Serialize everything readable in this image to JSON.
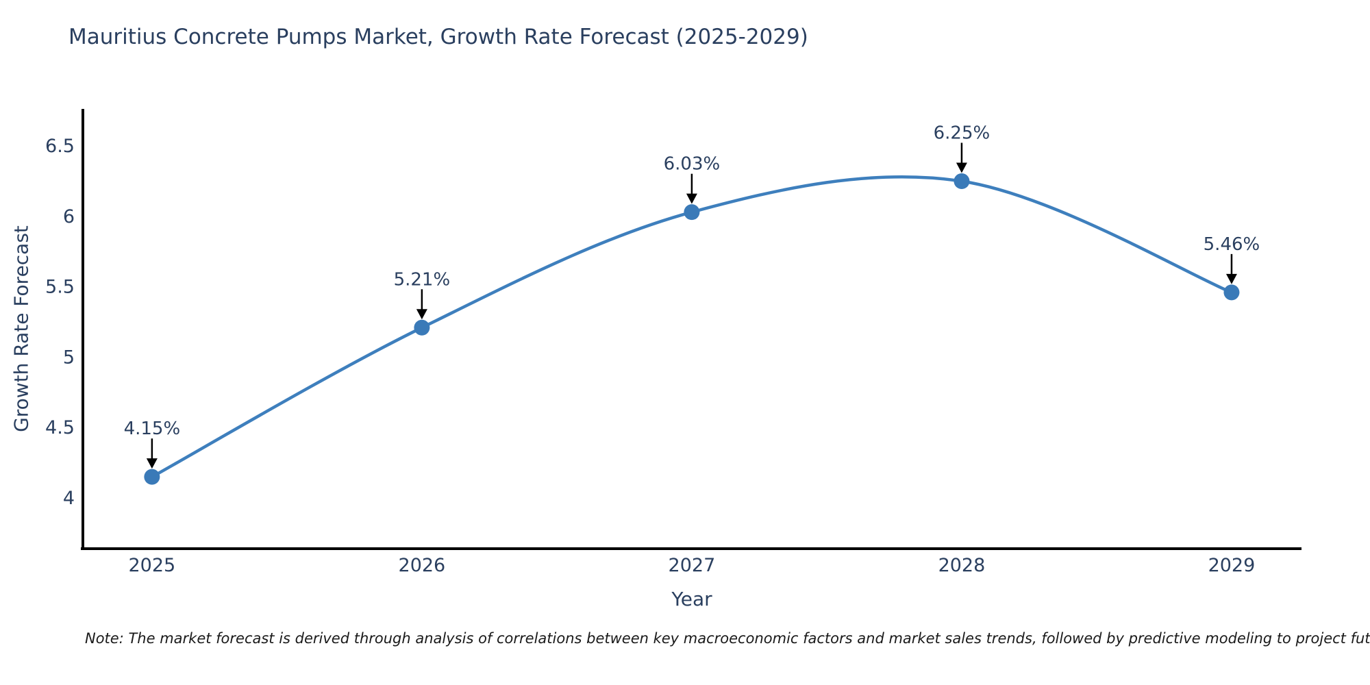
{
  "title": "Mauritius Concrete Pumps Market, Growth Rate Forecast (2025-2029)",
  "note": "Note: The market forecast is derived through analysis of correlations between key macroeconomic factors and market sales trends, followed by predictive modeling to project future sales",
  "colors": {
    "text": "#2a3f5f",
    "line": "#3e7fbd",
    "marker": "#3a7ab8",
    "axis": "#000000",
    "annotation_arrow": "#000000",
    "background": "#ffffff"
  },
  "chart_data": {
    "type": "line",
    "title": "Mauritius Concrete Pumps Market, Growth Rate Forecast (2025-2029)",
    "xlabel": "Year",
    "ylabel": "Growth Rate Forecast",
    "x": [
      2025,
      2026,
      2027,
      2028,
      2029
    ],
    "y": [
      4.15,
      5.21,
      6.03,
      6.25,
      5.46
    ],
    "point_labels": [
      "4.15%",
      "5.21%",
      "6.03%",
      "6.25%",
      "5.46%"
    ],
    "xticks": [
      2025,
      2026,
      2027,
      2028,
      2029
    ],
    "yticks": [
      4,
      4.5,
      5,
      5.5,
      6,
      6.5
    ],
    "xlim": [
      2024.744,
      2029.259
    ],
    "ylim": [
      3.64,
      6.763
    ],
    "grid": false,
    "legend": false,
    "line_shape": "spline",
    "annotations": "arrow-down-to-point"
  }
}
